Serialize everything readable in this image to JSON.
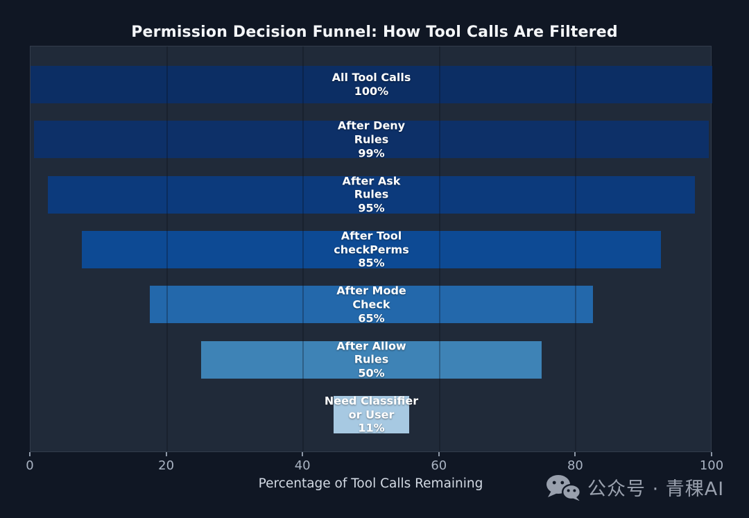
{
  "chart_data": {
    "type": "funnel",
    "title": "Permission Decision Funnel: How Tool Calls Are Filtered",
    "xlabel": "Percentage of Tool Calls Remaining",
    "xlim": [
      0,
      100
    ],
    "x_ticks": [
      0,
      20,
      40,
      60,
      80,
      100
    ],
    "grid": "vertical-lines-at-inner-ticks",
    "orientation": "horizontal-centered-funnel",
    "legend": "none",
    "stages": [
      {
        "label": "All Tool Calls",
        "value_pct": 100,
        "display_lines": [
          "All Tool Calls",
          "100%"
        ],
        "color": "#0c2e64"
      },
      {
        "label": "After Deny Rules",
        "value_pct": 99,
        "display_lines": [
          "After Deny",
          "Rules",
          "99%"
        ],
        "color": "#0d3068"
      },
      {
        "label": "After Ask Rules",
        "value_pct": 95,
        "display_lines": [
          "After Ask",
          "Rules",
          "95%"
        ],
        "color": "#0c3a7c"
      },
      {
        "label": "After Tool checkPerms",
        "value_pct": 85,
        "display_lines": [
          "After Tool",
          "checkPerms",
          "85%"
        ],
        "color": "#0d4a94"
      },
      {
        "label": "After Mode Check",
        "value_pct": 65,
        "display_lines": [
          "After Mode",
          "Check",
          "65%"
        ],
        "color": "#2368ab"
      },
      {
        "label": "After Allow Rules",
        "value_pct": 50,
        "display_lines": [
          "After Allow",
          "Rules",
          "50%"
        ],
        "color": "#3e83b6"
      },
      {
        "label": "Need Classifier or User",
        "value_pct": 11,
        "display_lines": [
          "Need Classifier",
          "or User",
          "11%"
        ],
        "color": "#a7c9e2"
      }
    ]
  },
  "watermark": {
    "icon": "wechat-icon",
    "text": "公众号 · 青稞AI"
  },
  "colors": {
    "page_bg": "#101724",
    "plot_bg": "#202a39",
    "plot_border": "#323c4b",
    "title_text": "#f4f6f9",
    "bar_text": "#ffffff",
    "tick_text": "#a9b3c2",
    "axis_label_text": "#d3dae4",
    "watermark_text": "#99a0ad",
    "gridline": "rgba(10,14,24,0.30)"
  }
}
